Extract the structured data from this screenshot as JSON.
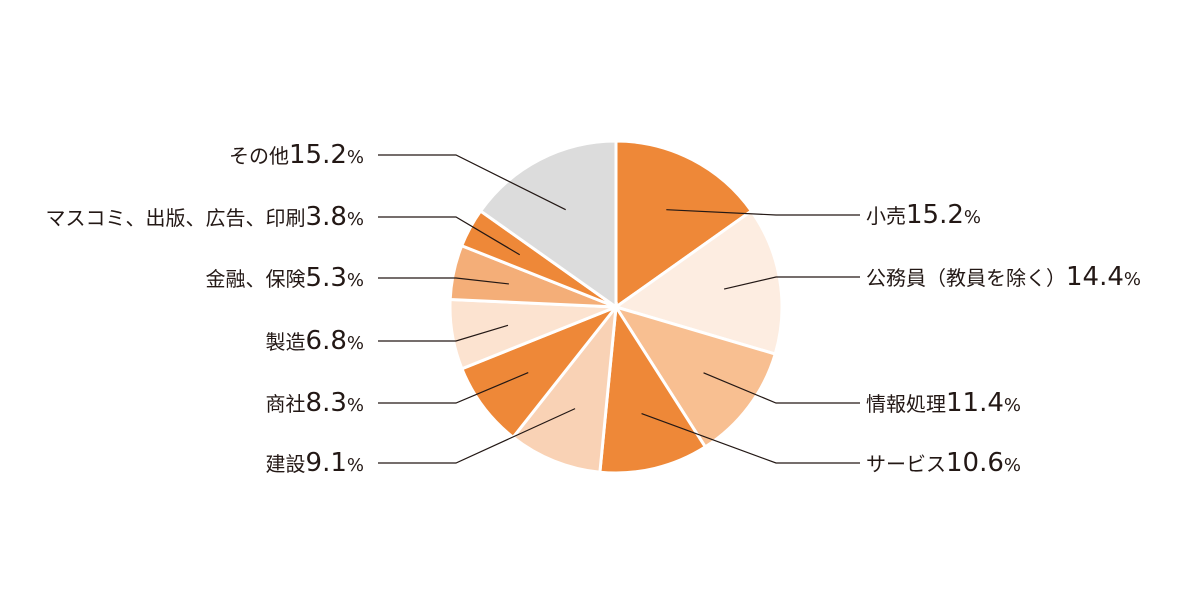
{
  "chart_data": {
    "type": "pie",
    "title": "",
    "unit": "%",
    "start_angle": "12 o'clock",
    "direction": "clockwise",
    "legend": "none (leader-line labels)",
    "slices": [
      {
        "label": "小売",
        "value": 15.2,
        "color": "#EE8838",
        "side": "right"
      },
      {
        "label": "公務員（教員を除く）",
        "value": 14.4,
        "color": "#FDEDE1",
        "side": "right"
      },
      {
        "label": "情報処理",
        "value": 11.4,
        "color": "#F8BF91",
        "side": "right"
      },
      {
        "label": "サービス",
        "value": 10.6,
        "color": "#EE8838",
        "side": "right"
      },
      {
        "label": "建設",
        "value": 9.1,
        "color": "#F9D2B5",
        "side": "left"
      },
      {
        "label": "商社",
        "value": 8.3,
        "color": "#EE8838",
        "side": "left"
      },
      {
        "label": "製造",
        "value": 6.8,
        "color": "#FCE3D0",
        "side": "left"
      },
      {
        "label": "金融、保険",
        "value": 5.3,
        "color": "#F4AE78",
        "side": "left"
      },
      {
        "label": "マスコミ、出版、広告、印刷",
        "value": 3.8,
        "color": "#EE8838",
        "side": "left"
      },
      {
        "label": "その他",
        "value": 15.2,
        "color": "#DCDCDC",
        "side": "left"
      }
    ]
  }
}
